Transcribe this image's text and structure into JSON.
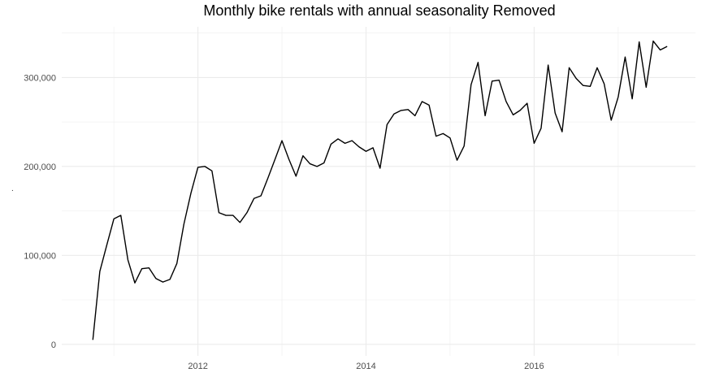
{
  "chart_data": {
    "type": "line",
    "title": "Monthly bike rentals with annual seasonality Removed",
    "xlabel": "",
    "ylabel": ".",
    "x_axis": {
      "range": [
        2010.38,
        2017.92
      ],
      "ticks": [
        2012,
        2014,
        2016
      ],
      "tick_labels": [
        "2012",
        "2014",
        "2016"
      ]
    },
    "y_axis": {
      "range": [
        -13000,
        357000
      ],
      "ticks": [
        0,
        100000,
        200000,
        300000
      ],
      "tick_labels": [
        "0",
        "100,000",
        "200,000",
        "300,000"
      ]
    },
    "grid": true,
    "series": [
      {
        "color": "#000000",
        "x": [
          2010.75,
          2010.833,
          2010.917,
          2011.0,
          2011.083,
          2011.167,
          2011.25,
          2011.333,
          2011.417,
          2011.5,
          2011.583,
          2011.667,
          2011.75,
          2011.833,
          2011.917,
          2012.0,
          2012.083,
          2012.167,
          2012.25,
          2012.333,
          2012.417,
          2012.5,
          2012.583,
          2012.667,
          2012.75,
          2012.833,
          2012.917,
          2013.0,
          2013.083,
          2013.167,
          2013.25,
          2013.333,
          2013.417,
          2013.5,
          2013.583,
          2013.667,
          2013.75,
          2013.833,
          2013.917,
          2014.0,
          2014.083,
          2014.167,
          2014.25,
          2014.333,
          2014.417,
          2014.5,
          2014.583,
          2014.667,
          2014.75,
          2014.833,
          2014.917,
          2015.0,
          2015.083,
          2015.167,
          2015.25,
          2015.333,
          2015.417,
          2015.5,
          2015.583,
          2015.667,
          2015.75,
          2015.833,
          2015.917,
          2016.0,
          2016.083,
          2016.167,
          2016.25,
          2016.333,
          2016.417,
          2016.5,
          2016.583,
          2016.667,
          2016.75,
          2016.833,
          2016.917,
          2017.0,
          2017.083,
          2017.167,
          2017.25,
          2017.333,
          2017.417,
          2017.5,
          2017.583
        ],
        "values": [
          5000,
          82000,
          112000,
          141000,
          145000,
          95000,
          69000,
          85000,
          86000,
          74000,
          70000,
          73000,
          91000,
          135000,
          170000,
          199000,
          200000,
          195000,
          148000,
          145000,
          145000,
          137000,
          148000,
          164000,
          167000,
          187000,
          208000,
          229000,
          208000,
          189000,
          212000,
          203000,
          200000,
          204000,
          225000,
          231000,
          226000,
          229000,
          222000,
          217000,
          221000,
          198000,
          247000,
          259000,
          263000,
          264000,
          257000,
          273000,
          269000,
          234000,
          237000,
          232000,
          207000,
          223000,
          292000,
          317000,
          257000,
          296000,
          297000,
          273000,
          258000,
          263000,
          271000,
          226000,
          243000,
          314000,
          260000,
          239000,
          311000,
          299000,
          291000,
          290000,
          311000,
          293000,
          252000,
          278000,
          323000,
          276000,
          340000,
          289000,
          341000,
          331000,
          335000
        ]
      }
    ]
  }
}
